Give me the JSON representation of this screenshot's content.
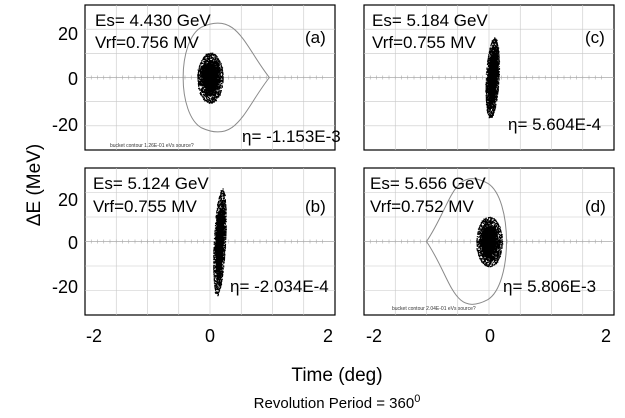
{
  "figure": {
    "y_axis_label": "ΔE (MeV)",
    "x_axis_label": "Time (deg)",
    "footnote": "Revolution Period = 360",
    "footnote_superscript": "0"
  },
  "chart_data": [
    {
      "type": "scatter",
      "panel": "(a)",
      "params": [
        "Es= 4.430 GeV",
        "Vrf=0.756 MV"
      ],
      "eta": "η= -1.153E-3",
      "contour_note": "bucket contour 1.26E-01 eVs source?",
      "xlim": [
        -2,
        2
      ],
      "ylim": [
        -30,
        30
      ],
      "xticks": [
        "-2",
        "0",
        "2"
      ],
      "yticks": [
        "20",
        "0",
        "-20"
      ],
      "bunch": {
        "center": [
          0.0,
          0.0
        ],
        "half_width_deg": 0.2,
        "half_height_mev": 10
      },
      "separatrix": {
        "tip": [
          0.95,
          0
        ],
        "left": -0.45,
        "half_height_mev": 22
      },
      "grid": true
    },
    {
      "type": "scatter",
      "panel": "(b)",
      "params": [
        "Es= 5.124 GeV",
        "Vrf=0.755 MV"
      ],
      "eta": "η= -2.034E-4",
      "xlim": [
        -2,
        2
      ],
      "ylim": [
        -30,
        30
      ],
      "xticks": [
        "-2",
        "0",
        "2"
      ],
      "yticks": [
        "20",
        "0",
        "-20"
      ],
      "bunch": {
        "center": [
          0.15,
          0.0
        ],
        "half_width_deg": 0.09,
        "half_height_mev": 21,
        "tilt": "positive"
      },
      "grid": true
    },
    {
      "type": "scatter",
      "panel": "(c)",
      "params": [
        "Es= 5.184 GeV",
        "Vrf=0.755 MV"
      ],
      "eta": "η= 5.604E-4",
      "xlim": [
        -2,
        2
      ],
      "ylim": [
        -30,
        30
      ],
      "xticks": [
        "-2",
        "0",
        "2"
      ],
      "yticks": [
        "20",
        "0",
        "-20"
      ],
      "bunch": {
        "center": [
          0.05,
          0.0
        ],
        "half_width_deg": 0.1,
        "half_height_mev": 16,
        "tilt": "positive"
      },
      "grid": true
    },
    {
      "type": "scatter",
      "panel": "(d)",
      "params": [
        "Es= 5.656 GeV",
        "Vrf=0.752 MV"
      ],
      "eta": "η= 5.806E-3",
      "contour_note": "bucket contour 2.04E-01 eVs source?",
      "xlim": [
        -2,
        2
      ],
      "ylim": [
        -30,
        30
      ],
      "xticks": [
        "-2",
        "0",
        "2"
      ],
      "yticks": [
        "20",
        "0",
        "-20"
      ],
      "bunch": {
        "center": [
          0.0,
          0.0
        ],
        "half_width_deg": 0.2,
        "half_height_mev": 10
      },
      "separatrix": {
        "tip": [
          -1.0,
          0
        ],
        "right": 0.3,
        "half_height_mev": 25
      },
      "grid": true
    }
  ],
  "colors": {
    "points": "#000000",
    "grid": "#c8c8c8",
    "frame": "#000000",
    "separatrix": "#8a8a8a",
    "zero_line": "#aaaaaa"
  }
}
